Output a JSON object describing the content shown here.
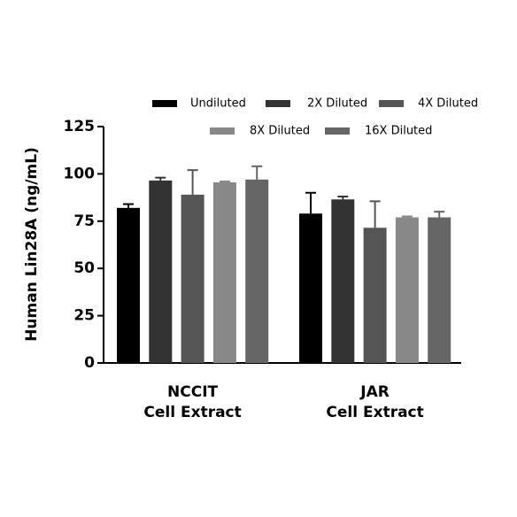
{
  "chart_data": {
    "type": "bar",
    "y_label": "Human Lin28A (ng/mL)",
    "categories": [
      [
        "NCCIT",
        "Cell Extract"
      ],
      [
        "JAR",
        "Cell Extract"
      ]
    ],
    "series": [
      {
        "name": "Undiluted",
        "color": "#000000",
        "values": [
          82,
          79
        ],
        "errors": [
          2,
          11
        ]
      },
      {
        "name": "2X Diluted",
        "color": "#333333",
        "values": [
          96.5,
          86.5
        ],
        "errors": [
          1.5,
          1.5
        ]
      },
      {
        "name": "4X Diluted",
        "color": "#555555",
        "values": [
          89,
          71.5
        ],
        "errors": [
          13,
          14
        ]
      },
      {
        "name": "8X Diluted",
        "color": "#888888",
        "values": [
          95.5,
          77
        ],
        "errors": [
          0.5,
          0.5
        ]
      },
      {
        "name": "16X Diluted",
        "color": "#666666",
        "values": [
          97,
          77
        ],
        "errors": [
          7,
          3
        ]
      }
    ],
    "ylim": [
      0,
      125
    ],
    "yticks": [
      0,
      25,
      50,
      75,
      100,
      125
    ],
    "grid": false
  }
}
